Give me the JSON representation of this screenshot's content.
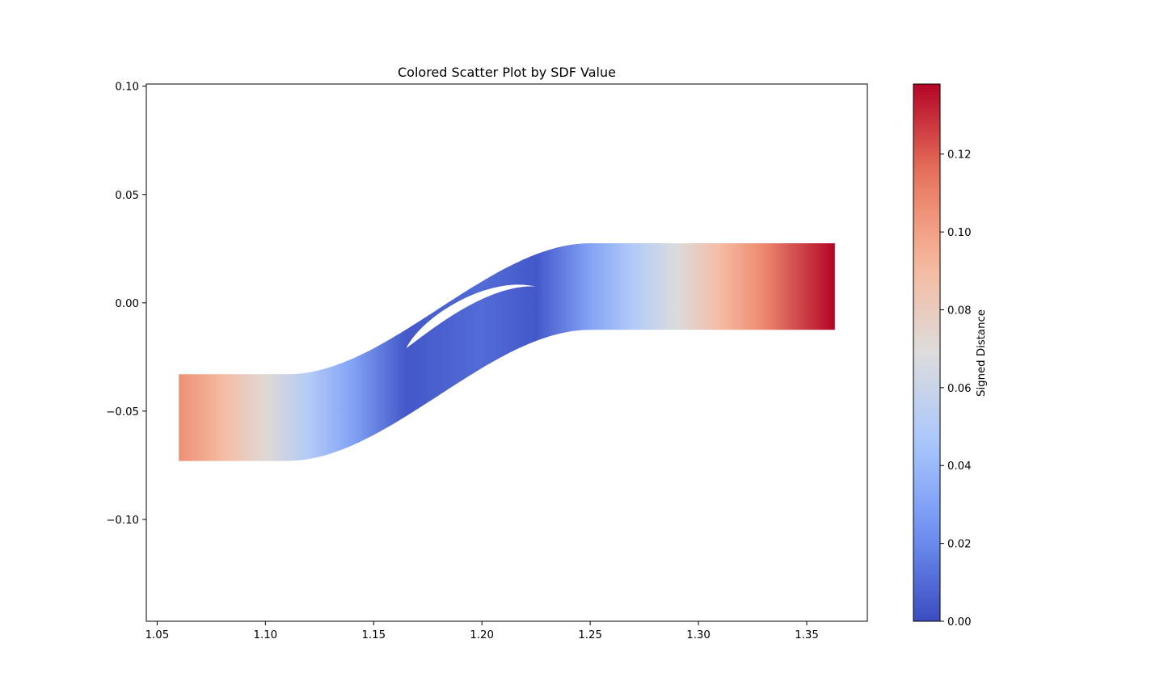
{
  "chart_data": {
    "type": "scatter",
    "title": "Colored Scatter Plot by SDF Value",
    "xlabel": "",
    "ylabel": "",
    "xlim": [
      1.045,
      1.378
    ],
    "ylim": [
      -0.147,
      0.101
    ],
    "x_ticks": [
      {
        "value": 1.05,
        "label": "1.05"
      },
      {
        "value": 1.1,
        "label": "1.10"
      },
      {
        "value": 1.15,
        "label": "1.15"
      },
      {
        "value": 1.2,
        "label": "1.20"
      },
      {
        "value": 1.25,
        "label": "1.25"
      },
      {
        "value": 1.3,
        "label": "1.30"
      },
      {
        "value": 1.35,
        "label": "1.35"
      }
    ],
    "y_ticks": [
      {
        "value": 0.1,
        "label": "0.10"
      },
      {
        "value": 0.05,
        "label": "0.05"
      },
      {
        "value": 0.0,
        "label": "0.00"
      },
      {
        "value": -0.05,
        "label": "−0.05"
      },
      {
        "value": -0.1,
        "label": "−0.10"
      }
    ],
    "grid": false,
    "colormap": "coolwarm",
    "colorbar": {
      "label": "Signed Distance",
      "range": [
        0.0,
        0.138
      ],
      "ticks": [
        {
          "value": 0.0,
          "label": "0.00"
        },
        {
          "value": 0.02,
          "label": "0.02"
        },
        {
          "value": 0.04,
          "label": "0.04"
        },
        {
          "value": 0.06,
          "label": "0.06"
        },
        {
          "value": 0.08,
          "label": "0.08"
        },
        {
          "value": 0.1,
          "label": "0.10"
        },
        {
          "value": 0.12,
          "label": "0.12"
        }
      ]
    },
    "region": {
      "description_free": true,
      "x_start": 1.06,
      "x_end": 1.363,
      "left_band": [
        -0.073,
        -0.033
      ],
      "right_band": [
        -0.0125,
        0.0275
      ],
      "bend_x": [
        1.11,
        1.25
      ],
      "hole": {
        "x_start": 1.165,
        "x_end": 1.225,
        "y_start": -0.021,
        "y_end": 0.0075
      }
    },
    "color_samples": [
      {
        "x": 1.06,
        "sdf": 0.106
      },
      {
        "x": 1.08,
        "sdf": 0.09
      },
      {
        "x": 1.1,
        "sdf": 0.072
      },
      {
        "x": 1.12,
        "sdf": 0.05
      },
      {
        "x": 1.14,
        "sdf": 0.03
      },
      {
        "x": 1.165,
        "sdf": 0.004
      },
      {
        "x": 1.2,
        "sdf": 0.01
      },
      {
        "x": 1.225,
        "sdf": 0.004
      },
      {
        "x": 1.25,
        "sdf": 0.03
      },
      {
        "x": 1.27,
        "sdf": 0.05
      },
      {
        "x": 1.29,
        "sdf": 0.068
      },
      {
        "x": 1.31,
        "sdf": 0.09
      },
      {
        "x": 1.33,
        "sdf": 0.108
      },
      {
        "x": 1.363,
        "sdf": 0.138
      }
    ],
    "colors": {
      "cmap_stops": [
        "#3b4cc0",
        "#7093f3",
        "#aac7fd",
        "#dddcdc",
        "#f7b89c",
        "#e7745b",
        "#b40426"
      ]
    }
  }
}
